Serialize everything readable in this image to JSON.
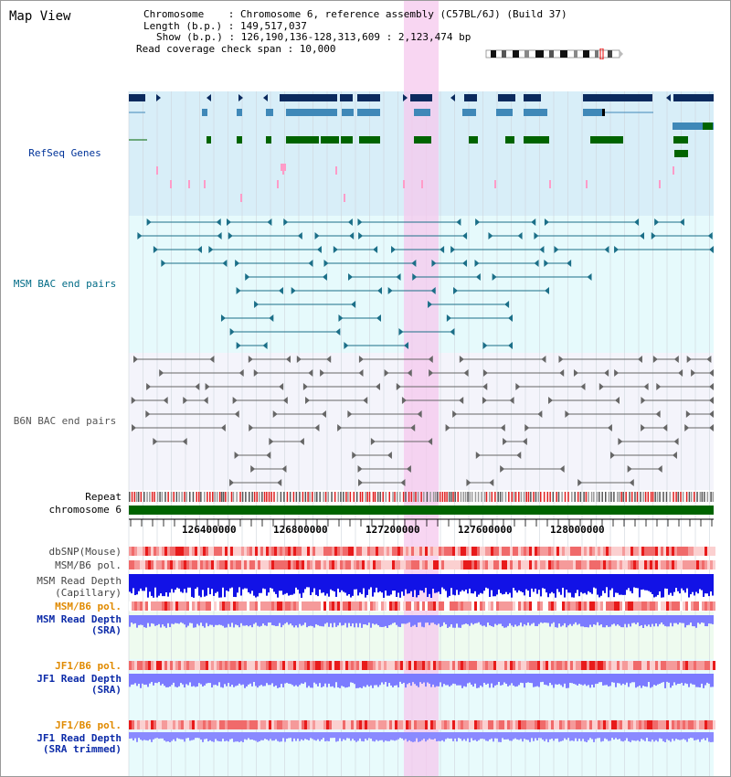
{
  "view": {
    "title": "Map View",
    "chromosome_label": "Chromosome    : ",
    "chromosome_value": "Chromosome 6, reference assembly (C57BL/6J) (Build 37)",
    "length_label": "Length (b.p.) : ",
    "length_value": "149,517,037",
    "show_label": "Show (b.p.) : ",
    "show_value": "126,190,136-128,313,609 : 2,123,474 bp",
    "coverage_label": "Read coverage check span : ",
    "coverage_value": "10,000"
  },
  "tracks": {
    "refseq": "RefSeq Genes",
    "msm_bac": "MSM BAC end pairs",
    "b6n_bac": "B6N BAC end pairs",
    "repeat": "Repeat",
    "chromosome": "chromosome 6",
    "dbsnp": "dbSNP(Mouse)",
    "msm_b6_pol": "MSM/B6 pol.",
    "msm_depth_cap_1": "MSM Read Depth",
    "msm_depth_cap_2": "(Capillary)",
    "msm_b6_pol_sra": "MSM/B6 pol.",
    "msm_depth_sra_1": "MSM Read Depth",
    "msm_depth_sra_2": "(SRA)",
    "jf1_b6_pol_1": "JF1/B6 pol.",
    "jf1_depth_1": "JF1 Read Depth",
    "jf1_depth_1b": "(SRA)",
    "jf1_b6_pol_2": "JF1/B6 pol.",
    "jf1_depth_2": "JF1 Read Depth",
    "jf1_depth_2b": "(SRA trimmed)"
  },
  "axis": {
    "ticks": [
      "126400000",
      "126800000",
      "127200000",
      "127600000",
      "128000000"
    ]
  },
  "colors": {
    "gene_dark": "#0b2a5e",
    "gene_mid": "#3f88b8",
    "gene_green": "#006400",
    "highlight": "#f5c8ee",
    "refseq_bg": "#d8eef8",
    "bac_msm_bg": "#e8fbfc",
    "bac_b6n_bg": "#f3f3fb",
    "depth_dark": "#0000e0",
    "depth_light": "#7b7bff"
  }
}
